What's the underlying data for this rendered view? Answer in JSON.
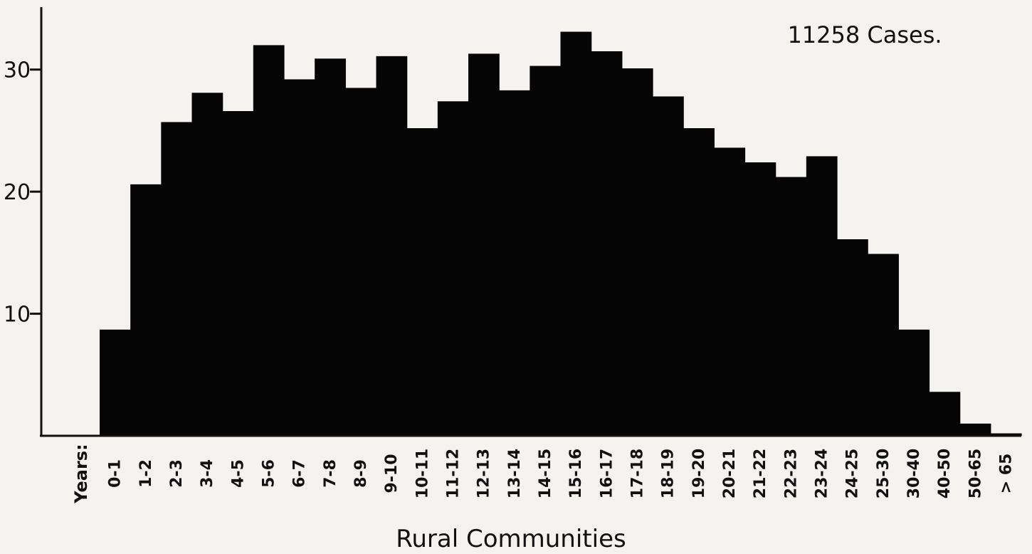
{
  "chart_data": {
    "type": "bar",
    "title": "11258 Cases.",
    "xlabel": "Rural Communities",
    "x_axis_prefix": "Years:",
    "ylabel": "",
    "ylim": [
      0,
      35
    ],
    "yticks": [
      10,
      20,
      30
    ],
    "grid": false,
    "categories": [
      "0-1",
      "1-2",
      "2-3",
      "3-4",
      "4-5",
      "5-6",
      "6-7",
      "7-8",
      "8-9",
      "9-10",
      "10-11",
      "11-12",
      "12-13",
      "13-14",
      "14-15",
      "15-16",
      "16-17",
      "17-18",
      "18-19",
      "19-20",
      "20-21",
      "21-22",
      "22-23",
      "23-24",
      "24-25",
      "25-30",
      "30-40",
      "40-50",
      "50-65",
      "> 65"
    ],
    "values": [
      8.7,
      20.6,
      25.7,
      28.1,
      26.6,
      32.0,
      29.2,
      30.9,
      28.5,
      31.1,
      25.2,
      27.4,
      31.3,
      28.3,
      30.3,
      33.1,
      31.5,
      30.1,
      27.8,
      25.2,
      23.6,
      22.4,
      21.2,
      22.9,
      16.1,
      14.9,
      8.7,
      3.6,
      1.0,
      0.2
    ]
  }
}
